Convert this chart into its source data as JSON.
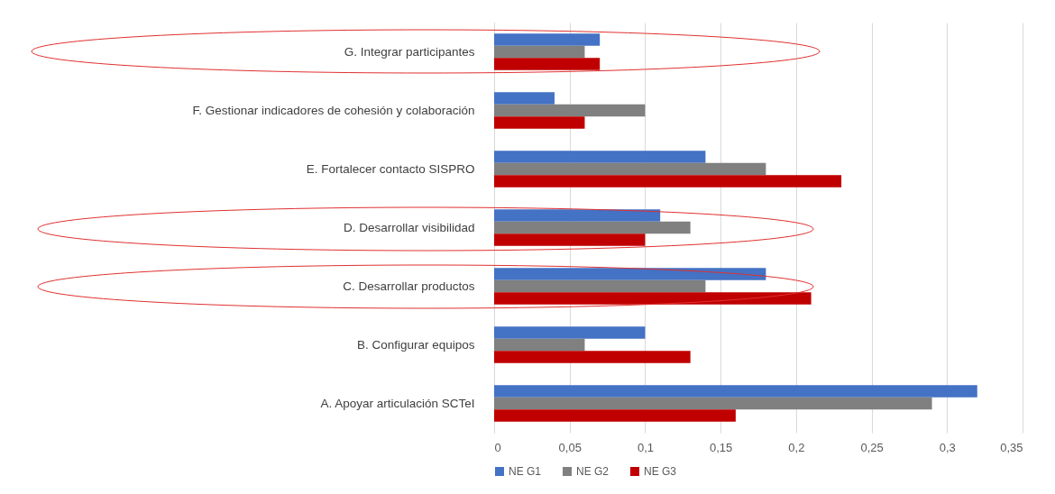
{
  "chart_data": {
    "type": "bar",
    "orientation": "horizontal",
    "categories": [
      "G. Integrar participantes",
      "F. Gestionar indicadores de cohesión y colaboración",
      "E. Fortalecer contacto SISPRO",
      "D. Desarrollar visibilidad",
      "C. Desarrollar productos",
      "B. Configurar equipos",
      "A. Apoyar articulación SCTeI"
    ],
    "series": [
      {
        "name": "NE G1",
        "color": "#4472c4",
        "values": [
          0.07,
          0.04,
          0.14,
          0.11,
          0.18,
          0.1,
          0.32
        ]
      },
      {
        "name": "NE G2",
        "color": "#808080",
        "values": [
          0.06,
          0.1,
          0.18,
          0.13,
          0.14,
          0.06,
          0.29
        ]
      },
      {
        "name": "NE G3",
        "color": "#c00000",
        "values": [
          0.07,
          0.06,
          0.23,
          0.1,
          0.21,
          0.13,
          0.16
        ]
      }
    ],
    "xlim": [
      0,
      0.35
    ],
    "xticks": [
      0,
      {
        "value": 0.05,
        "label": "0,05"
      },
      {
        "value": 0.1,
        "label": "0,1"
      },
      {
        "value": 0.15,
        "label": "0,15"
      },
      {
        "value": 0.2,
        "label": "0,2"
      },
      {
        "value": 0.25,
        "label": "0,25"
      },
      {
        "value": 0.3,
        "label": "0,3"
      },
      {
        "value": 0.35,
        "label": "0,35"
      }
    ],
    "grid": "x",
    "legend": "bottom"
  }
}
